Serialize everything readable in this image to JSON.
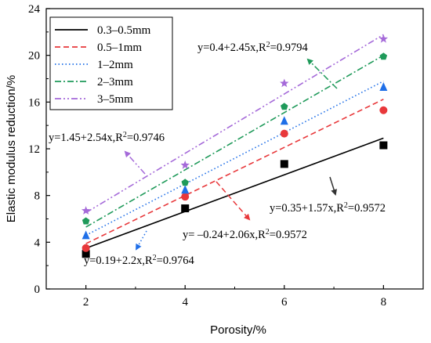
{
  "chart_data": {
    "type": "scatter",
    "xlabel": "Porosity/%",
    "ylabel": "Elastic modulus reduction/%",
    "xlim": [
      1.2,
      8.8
    ],
    "ylim": [
      0,
      24
    ],
    "xticks": [
      2,
      4,
      6,
      8
    ],
    "yticks": [
      0,
      4,
      8,
      12,
      16,
      20,
      24
    ],
    "grid": false,
    "legend_position": "top-left",
    "series": [
      {
        "name": "0.3–0.5mm",
        "color": "#000000",
        "marker": "square",
        "line_style": "solid",
        "x": [
          2,
          4,
          6,
          8
        ],
        "y": [
          3.0,
          6.9,
          10.7,
          12.3
        ],
        "fit": {
          "intercept": 0.35,
          "slope": 1.57
        },
        "equation": "y=0.35+1.57x,R",
        "r2": "=0.9572"
      },
      {
        "name": "0.5–1mm",
        "color": "#e8383b",
        "marker": "circle",
        "line_style": "dashed",
        "x": [
          2,
          4,
          6,
          8
        ],
        "y": [
          3.5,
          7.9,
          13.3,
          15.3
        ],
        "fit": {
          "intercept": -0.24,
          "slope": 2.06
        },
        "equation": "y= –0.24+2.06x,R",
        "r2": "=0.9572"
      },
      {
        "name": "1–2mm",
        "color": "#1f6fe8",
        "marker": "triangle",
        "line_style": "dotted",
        "x": [
          2,
          4,
          6,
          8
        ],
        "y": [
          4.6,
          8.5,
          14.4,
          17.3
        ],
        "fit": {
          "intercept": 0.19,
          "slope": 2.2
        },
        "equation": "y=0.19+2.2x,R",
        "r2": "=0.9764"
      },
      {
        "name": "2–3mm",
        "color": "#1f9a5a",
        "marker": "pentagon",
        "line_style": "dashdot",
        "x": [
          2,
          4,
          6,
          8
        ],
        "y": [
          5.8,
          9.1,
          15.6,
          19.9
        ],
        "fit": {
          "intercept": 0.4,
          "slope": 2.45
        },
        "equation": "y=0.4+2.45x,R",
        "r2": "=0.9794"
      },
      {
        "name": "3–5mm",
        "color": "#a56ad9",
        "marker": "star",
        "line_style": "dashdotdot",
        "x": [
          2,
          4,
          6,
          8
        ],
        "y": [
          6.7,
          10.6,
          17.6,
          21.4
        ],
        "fit": {
          "intercept": 1.45,
          "slope": 2.54
        },
        "equation": "y=1.45+2.54x,R",
        "r2": "=0.9746"
      }
    ],
    "annotations": [
      {
        "series": 0,
        "arrow_color": "#333333"
      },
      {
        "series": 1,
        "arrow_color": "#e8383b"
      },
      {
        "series": 2,
        "arrow_color": "#1f6fe8"
      },
      {
        "series": 3,
        "arrow_color": "#1f9a5a"
      },
      {
        "series": 4,
        "arrow_color": "#a56ad9"
      }
    ]
  }
}
